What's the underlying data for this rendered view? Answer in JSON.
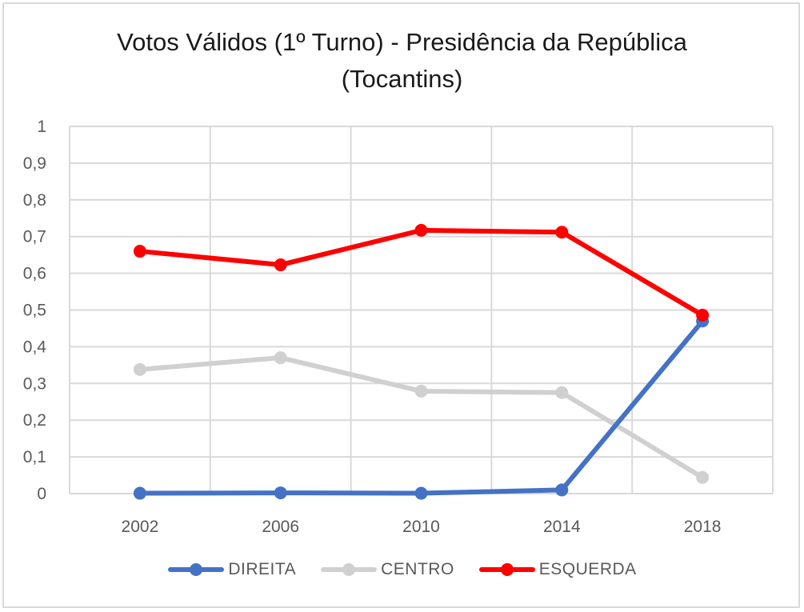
{
  "chart_data": {
    "type": "line",
    "title": "Votos Válidos (1º Turno) - Presidência da República (Tocantins)",
    "title_lines": [
      "Votos Válidos (1º Turno) - Presidência da República",
      "(Tocantins)"
    ],
    "xlabel": "",
    "ylabel": "",
    "categories": [
      "2002",
      "2006",
      "2010",
      "2014",
      "2018"
    ],
    "ylim": [
      0,
      1
    ],
    "yticks": [
      "0",
      "0,1",
      "0,2",
      "0,3",
      "0,4",
      "0,5",
      "0,6",
      "0,7",
      "0,8",
      "0,9",
      "1"
    ],
    "grid": true,
    "legend_position": "bottom",
    "series": [
      {
        "name": "DIREITA",
        "color": "#4472c4",
        "values": [
          0.001,
          0.002,
          0.001,
          0.01,
          0.47
        ]
      },
      {
        "name": "CENTRO",
        "color": "#d0d0d0",
        "values": [
          0.338,
          0.37,
          0.279,
          0.275,
          0.044
        ]
      },
      {
        "name": "ESQUERDA",
        "color": "#ff0000",
        "values": [
          0.66,
          0.623,
          0.717,
          0.712,
          0.486
        ]
      }
    ]
  }
}
